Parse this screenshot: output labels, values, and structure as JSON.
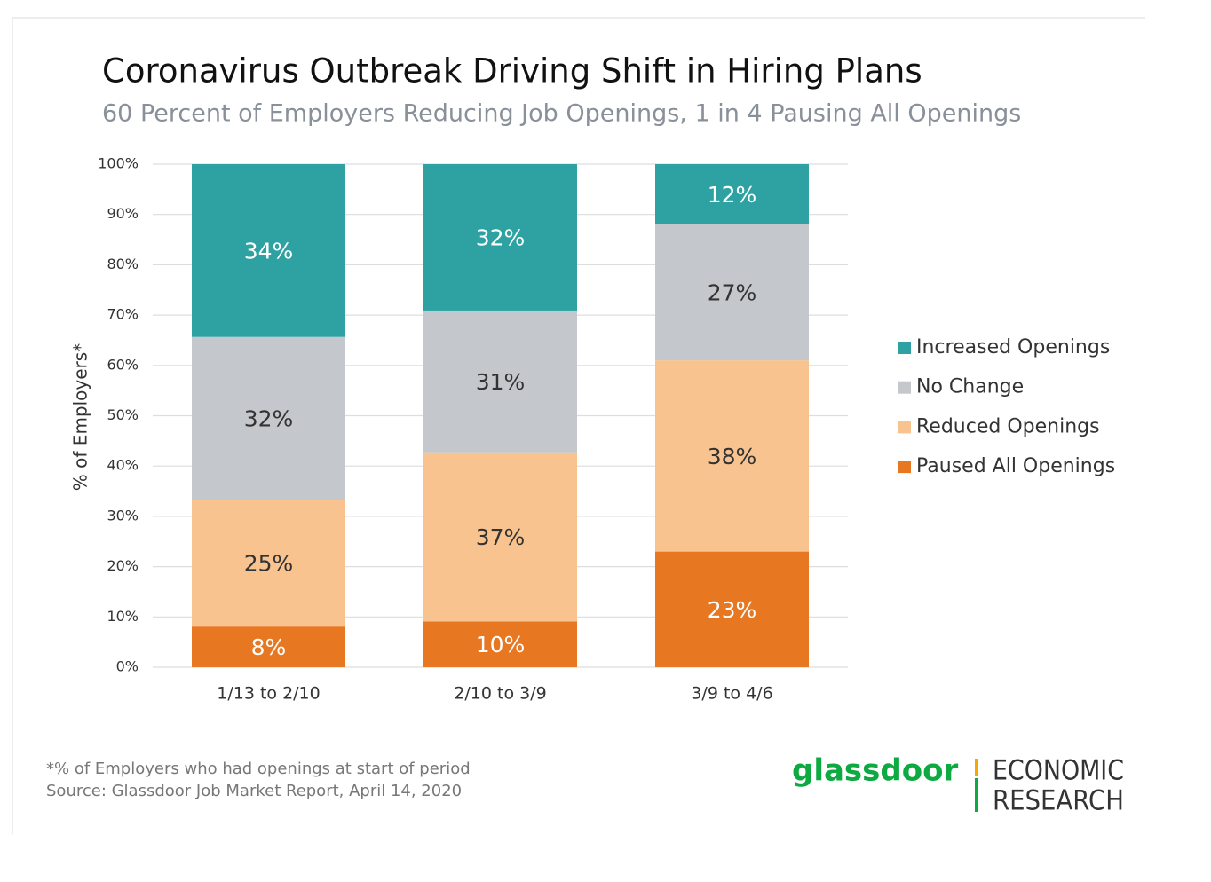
{
  "chart_data": {
    "type": "bar",
    "stacking": "percent",
    "title": "Coronavirus Outbreak Driving Shift in Hiring Plans",
    "subtitle": "60 Percent of Employers Reducing Job Openings, 1 in 4 Pausing All Openings",
    "y_label": "% of Employers*",
    "categories": [
      "1/13 to 2/10",
      "2/10 to 3/9",
      "3/9 to 4/6"
    ],
    "series": [
      {
        "name": "Paused All Openings",
        "color": "#e87722",
        "label_color": "#ffffff",
        "values": [
          8,
          10,
          23
        ],
        "value_labels": [
          "8%",
          "10%",
          "23%"
        ]
      },
      {
        "name": "Reduced Openings",
        "color": "#f9c38f",
        "label_color": "#333333",
        "values": [
          25,
          37,
          38
        ],
        "value_labels": [
          "25%",
          "37%",
          "38%"
        ]
      },
      {
        "name": "No Change",
        "color": "#c4c7cb",
        "label_color": "#333333",
        "values": [
          32,
          31,
          27
        ],
        "value_labels": [
          "32%",
          "31%",
          "27%"
        ]
      },
      {
        "name": "Increased Openings",
        "color": "#2ea2a2",
        "label_color": "#ffffff",
        "values": [
          34,
          32,
          12
        ],
        "value_labels": [
          "34%",
          "32%",
          "12%"
        ]
      }
    ],
    "ylim": [
      0,
      100
    ],
    "yticks": [
      {
        "value": 0,
        "label": "0%"
      },
      {
        "value": 10,
        "label": "10%"
      },
      {
        "value": 20,
        "label": "20%"
      },
      {
        "value": 30,
        "label": "30%"
      },
      {
        "value": 40,
        "label": "40%"
      },
      {
        "value": 50,
        "label": "50%"
      },
      {
        "value": 60,
        "label": "60%"
      },
      {
        "value": 70,
        "label": "70%"
      },
      {
        "value": 80,
        "label": "80%"
      },
      {
        "value": 90,
        "label": "90%"
      },
      {
        "value": 100,
        "label": "100%"
      }
    ],
    "grid": true,
    "legend": "right",
    "footnotes": [
      "*% of Employers who had openings at start of period",
      "Source: Glassdoor Job Market Report, April 14, 2020"
    ],
    "logo": {
      "brand": "glassdoor",
      "unit": [
        "ECONOMIC",
        "RESEARCH"
      ]
    }
  }
}
